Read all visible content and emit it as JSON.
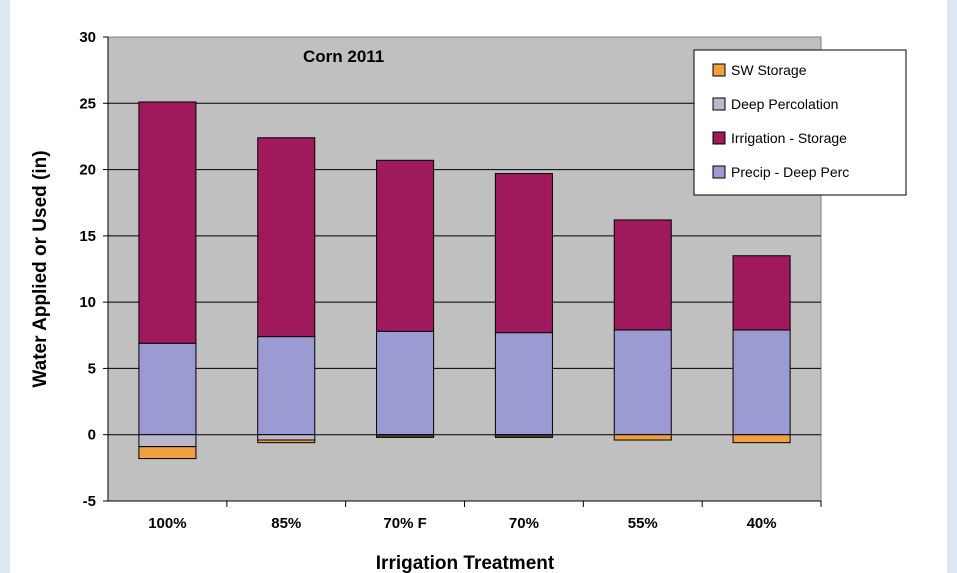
{
  "chart_data": {
    "type": "bar",
    "stacked": true,
    "title": "Corn 2011",
    "xlabel": "Irrigation Treatment",
    "ylabel": "Water Applied or Used (in)",
    "ylim": [
      -5,
      30
    ],
    "yticks": [
      -5,
      0,
      5,
      10,
      15,
      20,
      25,
      30
    ],
    "grid": true,
    "legend_position": "top-right",
    "categories": [
      "100%",
      "85%",
      "70% F",
      "70%",
      "55%",
      "40%"
    ],
    "series": [
      {
        "name": "SW Storage",
        "color": "#f0a040",
        "values": [
          -0.9,
          -0.2,
          -0.1,
          -0.1,
          -0.4,
          -0.6
        ]
      },
      {
        "name": "Deep Percolation",
        "color": "#b9b9c9",
        "values": [
          -0.9,
          -0.4,
          -0.1,
          -0.1,
          0,
          0
        ]
      },
      {
        "name": "Irrigation - Storage",
        "color": "#9e1a5c",
        "values": [
          18.2,
          15.0,
          12.9,
          12.0,
          8.3,
          5.6
        ]
      },
      {
        "name": "Precip - Deep Perc",
        "color": "#9c9ad2",
        "values": [
          6.9,
          7.4,
          7.8,
          7.7,
          7.9,
          7.9
        ]
      }
    ],
    "colors": {
      "plot_background": "#c0c0c0",
      "outer_background": "#dfe6f3"
    }
  }
}
